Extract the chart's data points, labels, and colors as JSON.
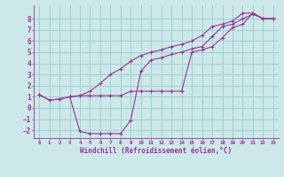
{
  "xlabel": "Windchill (Refroidissement éolien,°C)",
  "bg_color": "#cce8e8",
  "line_color": "#993399",
  "grid_color": "#99cccc",
  "xlim": [
    -0.5,
    23.5
  ],
  "ylim": [
    -2.7,
    9.2
  ],
  "xticks": [
    0,
    1,
    2,
    3,
    4,
    5,
    6,
    7,
    8,
    9,
    10,
    11,
    12,
    13,
    14,
    15,
    16,
    17,
    18,
    19,
    20,
    21,
    22,
    23
  ],
  "yticks": [
    -2,
    -1,
    0,
    1,
    2,
    3,
    4,
    5,
    6,
    7,
    8
  ],
  "line1_x": [
    0,
    1,
    2,
    3,
    4,
    5,
    6,
    7,
    8,
    9,
    10,
    11,
    12,
    13,
    14,
    15,
    16,
    17,
    18,
    19,
    20,
    21,
    22,
    23
  ],
  "line1_y": [
    1.2,
    0.7,
    0.8,
    1.0,
    1.1,
    1.1,
    1.1,
    1.1,
    1.1,
    1.5,
    1.5,
    1.5,
    1.5,
    1.5,
    1.5,
    5.0,
    5.2,
    5.5,
    6.3,
    7.2,
    7.5,
    8.5,
    8.0,
    8.0
  ],
  "line2_x": [
    0,
    1,
    2,
    3,
    4,
    5,
    6,
    7,
    8,
    9,
    10,
    11,
    12,
    13,
    14,
    15,
    16,
    17,
    18,
    19,
    20,
    21,
    22,
    23
  ],
  "line2_y": [
    1.2,
    0.7,
    0.8,
    1.0,
    -2.1,
    -2.3,
    -2.3,
    -2.3,
    -2.3,
    -1.1,
    3.3,
    4.3,
    4.5,
    4.8,
    5.0,
    5.3,
    5.5,
    6.4,
    7.3,
    7.5,
    8.0,
    8.4,
    8.0,
    8.0
  ],
  "line3_x": [
    3,
    4,
    5,
    6,
    7,
    8,
    9,
    10,
    11,
    12,
    13,
    14,
    15,
    16,
    17,
    18,
    19,
    20,
    21,
    22,
    23
  ],
  "line3_y": [
    1.0,
    1.1,
    1.5,
    2.2,
    3.0,
    3.5,
    4.2,
    4.7,
    5.0,
    5.2,
    5.5,
    5.7,
    6.0,
    6.5,
    7.3,
    7.5,
    7.8,
    8.5,
    8.5,
    8.0,
    8.0
  ]
}
